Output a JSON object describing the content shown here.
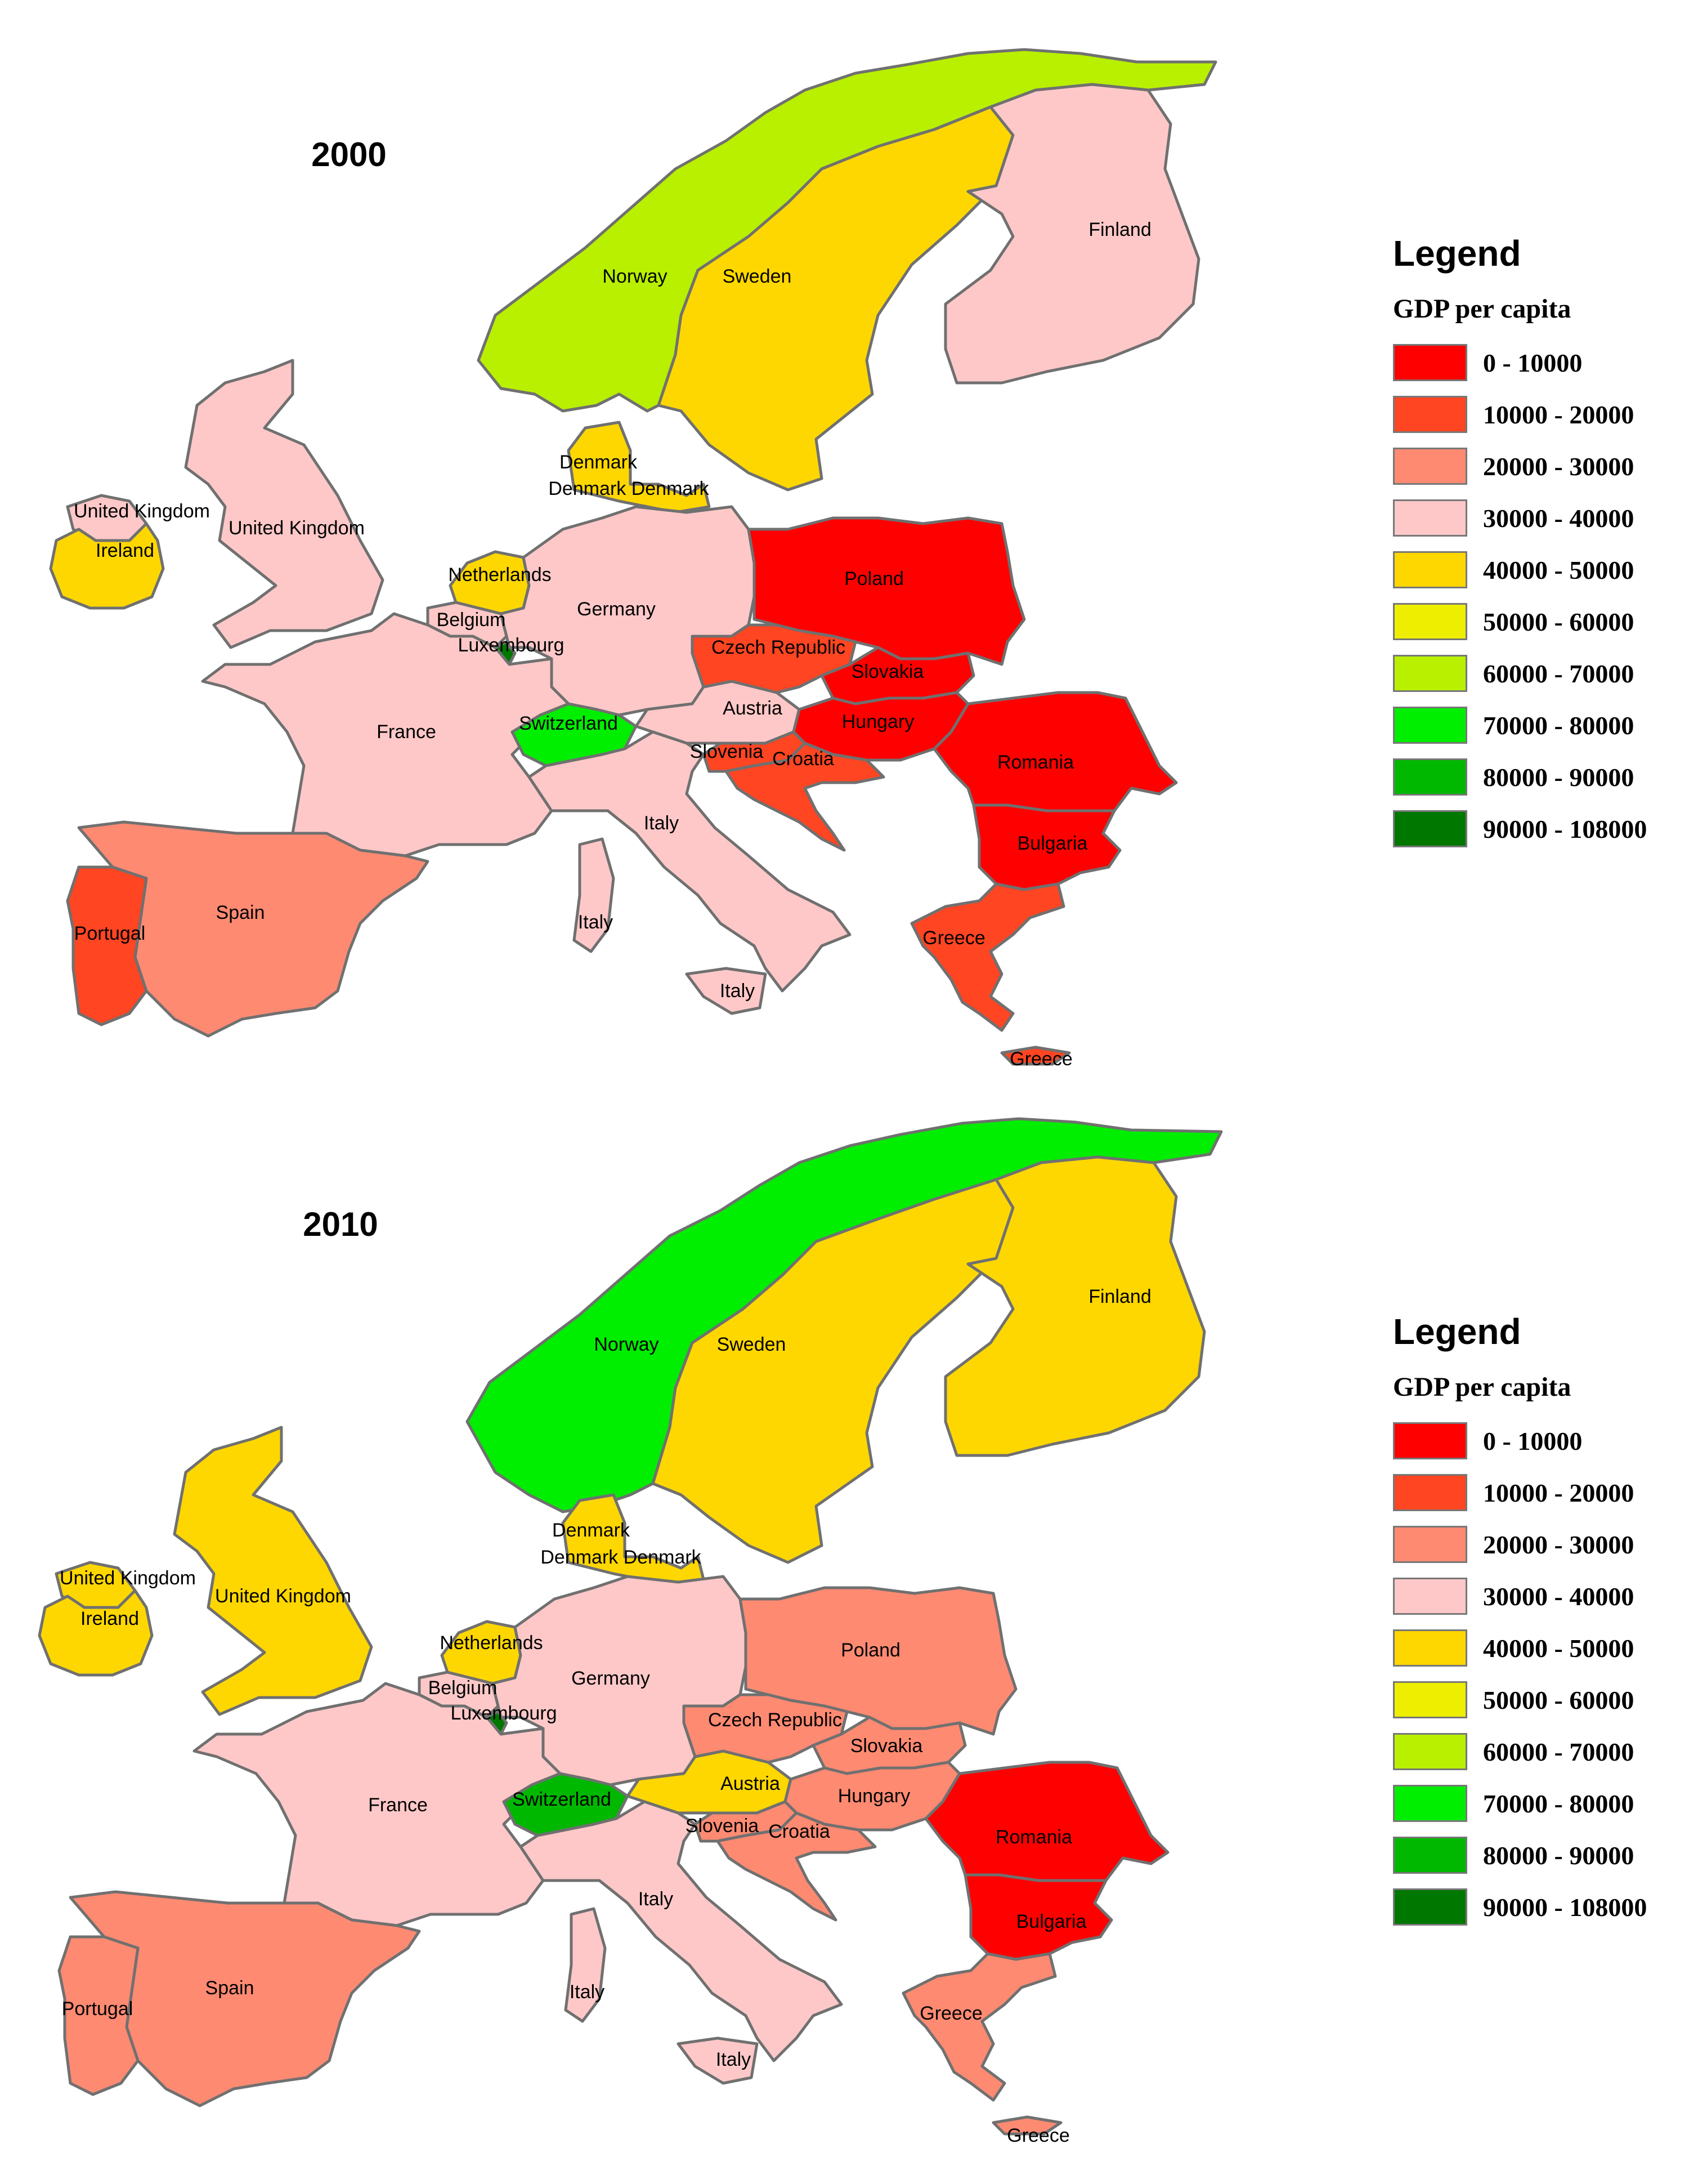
{
  "legend_title": "Legend",
  "legend_subtitle": "GDP per capita",
  "classes": [
    {
      "label": "0 - 10000",
      "color": "#ff0000"
    },
    {
      "label": "10000 - 20000",
      "color": "#ff4522"
    },
    {
      "label": "20000 - 30000",
      "color": "#ff8a72"
    },
    {
      "label": "30000 - 40000",
      "color": "#ffc8c8"
    },
    {
      "label": "40000 - 50000",
      "color": "#ffd700"
    },
    {
      "label": "50000 - 60000",
      "color": "#eeee00"
    },
    {
      "label": "60000 - 70000",
      "color": "#b8f000"
    },
    {
      "label": "70000 - 80000",
      "color": "#00ee00"
    },
    {
      "label": "80000 - 90000",
      "color": "#00b800"
    },
    {
      "label": "90000 - 108000",
      "color": "#007800"
    }
  ],
  "maps": [
    {
      "year": "2000",
      "countries": {
        "Norway": "60000 - 70000",
        "Sweden": "40000 - 50000",
        "Finland": "30000 - 40000",
        "Denmark": "40000 - 50000",
        "United Kingdom": "30000 - 40000",
        "Ireland": "40000 - 50000",
        "Netherlands": "40000 - 50000",
        "Belgium": "30000 - 40000",
        "Luxembourg": "90000 - 108000",
        "Germany": "30000 - 40000",
        "France": "30000 - 40000",
        "Switzerland": "70000 - 80000",
        "Austria": "30000 - 40000",
        "Italy": "30000 - 40000",
        "Spain": "20000 - 30000",
        "Portugal": "10000 - 20000",
        "Poland": "0 - 10000",
        "Czech Republic": "10000 - 20000",
        "Slovakia": "0 - 10000",
        "Hungary": "0 - 10000",
        "Slovenia": "10000 - 20000",
        "Croatia": "10000 - 20000",
        "Romania": "0 - 10000",
        "Bulgaria": "0 - 10000",
        "Greece": "10000 - 20000"
      }
    },
    {
      "year": "2010",
      "countries": {
        "Norway": "70000 - 80000",
        "Sweden": "40000 - 50000",
        "Finland": "40000 - 50000",
        "Denmark": "40000 - 50000",
        "United Kingdom": "40000 - 50000",
        "Ireland": "40000 - 50000",
        "Netherlands": "40000 - 50000",
        "Belgium": "30000 - 40000",
        "Luxembourg": "90000 - 108000",
        "Germany": "30000 - 40000",
        "France": "30000 - 40000",
        "Switzerland": "80000 - 90000",
        "Austria": "40000 - 50000",
        "Italy": "30000 - 40000",
        "Spain": "20000 - 30000",
        "Portugal": "20000 - 30000",
        "Poland": "20000 - 30000",
        "Czech Republic": "20000 - 30000",
        "Slovakia": "20000 - 30000",
        "Hungary": "20000 - 30000",
        "Slovenia": "20000 - 30000",
        "Croatia": "20000 - 30000",
        "Romania": "0 - 10000",
        "Bulgaria": "0 - 10000",
        "Greece": "20000 - 30000"
      }
    }
  ],
  "labels": {
    "norway": "Norway",
    "sweden": "Sweden",
    "finland": "Finland",
    "denmark": "Denmark",
    "denmark_dup": "Denmark Denmark",
    "united_kingdom": "United Kingdom",
    "ireland": "Ireland",
    "netherlands": "Netherlands",
    "belgium": "Belgium",
    "luxembourg": "Luxembourg",
    "germany": "Germany",
    "france": "France",
    "switzerland": "Switzerland",
    "austria": "Austria",
    "italy": "Italy",
    "spain": "Spain",
    "portugal": "Portugal",
    "poland": "Poland",
    "czech_republic": "Czech Republic",
    "slovakia": "Slovakia",
    "hungary": "Hungary",
    "slovenia": "Slovenia",
    "croatia": "Croatia",
    "romania": "Romania",
    "bulgaria": "Bulgaria",
    "greece": "Greece"
  }
}
